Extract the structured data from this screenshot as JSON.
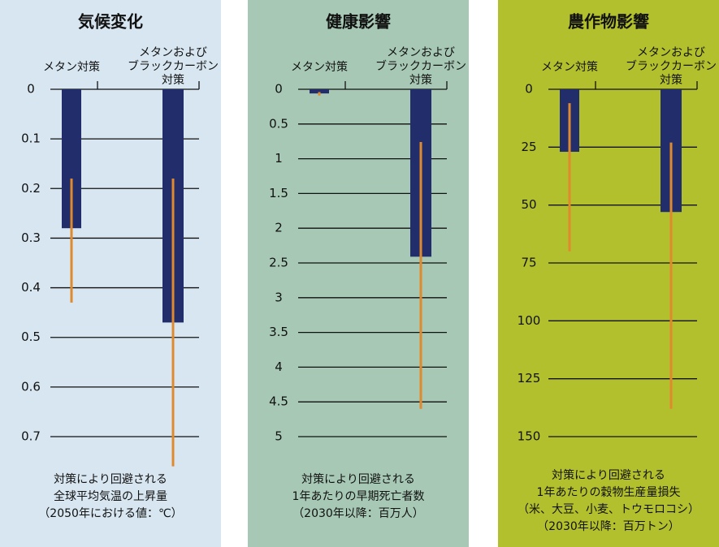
{
  "chart_data": [
    {
      "type": "bar",
      "title": "気候変化",
      "background": "#d7e6f0",
      "color": "#222d6b",
      "error_color": "#e08a2e",
      "inverted": true,
      "grid": true,
      "categories": [
        [
          "メタン対策"
        ],
        [
          "メタンおよび",
          "ブラックカーボン",
          "対策"
        ]
      ],
      "values": [
        0.28,
        0.47
      ],
      "lower": [
        0.18,
        0.18
      ],
      "upper": [
        0.43,
        0.76
      ],
      "ylim": [
        0,
        0.7
      ],
      "yticks": [
        0,
        0.1,
        0.2,
        0.3,
        0.4,
        0.5,
        0.6,
        0.7
      ],
      "note": [
        "対策により回避される",
        "全球平均気温の上昇量",
        "（2050年における値：℃）"
      ]
    },
    {
      "type": "bar",
      "title": "健康影響",
      "background": "#a6c8b4",
      "color": "#222d6b",
      "error_color": "#e08a2e",
      "inverted": true,
      "grid": true,
      "categories": [
        [
          "メタン対策"
        ],
        [
          "メタンおよび",
          "ブラックカーボン",
          "対策"
        ]
      ],
      "values": [
        0.06,
        2.41
      ],
      "lower": [
        0.04,
        0.76
      ],
      "upper": [
        0.09,
        4.6
      ],
      "ylim": [
        0,
        5
      ],
      "yticks": [
        0,
        0.5,
        1,
        1.5,
        2,
        2.5,
        3,
        3.5,
        4,
        4.5,
        5
      ],
      "note": [
        "対策により回避される",
        "1年あたりの早期死亡者数",
        "（2030年以降：百万人）"
      ]
    },
    {
      "type": "bar",
      "title": "農作物影響",
      "background": "#b3c02d",
      "color": "#222d6b",
      "error_color": "#e08a2e",
      "inverted": true,
      "grid": true,
      "categories": [
        [
          "メタン対策"
        ],
        [
          "メタンおよび",
          "ブラックカーボン",
          "対策"
        ]
      ],
      "values": [
        27,
        53
      ],
      "lower": [
        6,
        23
      ],
      "upper": [
        70,
        138
      ],
      "ylim": [
        0,
        150
      ],
      "yticks": [
        0,
        25,
        50,
        75,
        100,
        125,
        150
      ],
      "note": [
        "対策により回避される",
        "1年あたりの穀物生産量損失",
        "（米、大豆、小麦、トウモロコシ）",
        "（2030年以降：百万トン）"
      ]
    }
  ]
}
